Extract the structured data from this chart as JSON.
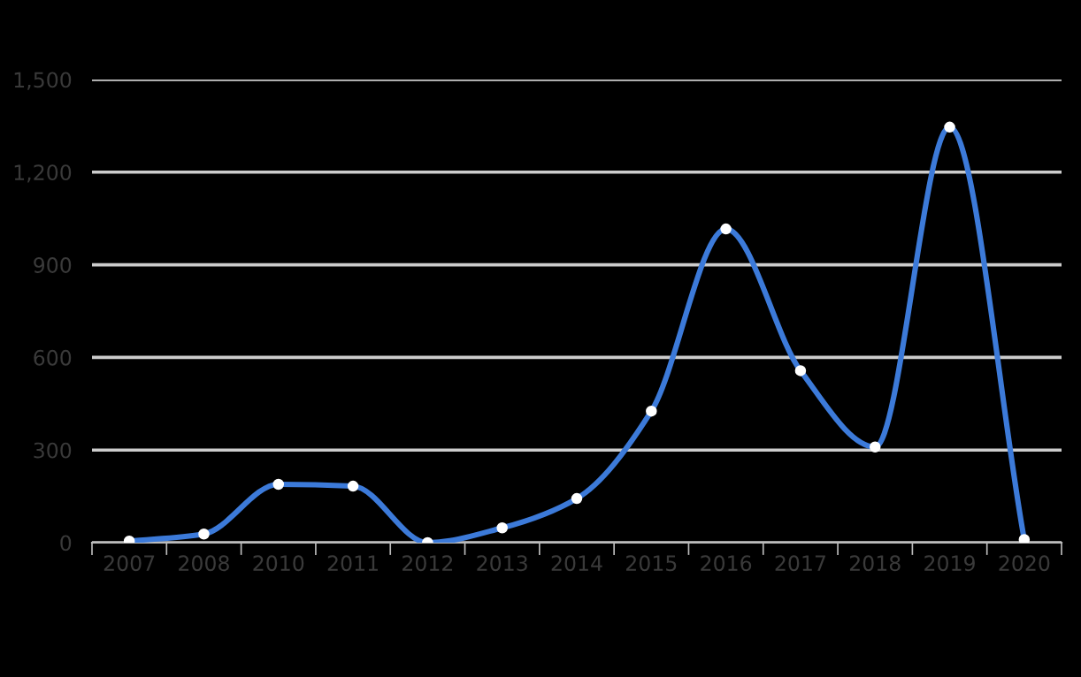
{
  "chart_data": {
    "type": "line",
    "categories": [
      "2007",
      "2008",
      "2010",
      "2011",
      "2012",
      "2013",
      "2014",
      "2015",
      "2016",
      "2017",
      "2018",
      "2019",
      "2020"
    ],
    "series": [
      {
        "color": "#3c7ad9",
        "values": [
          5,
          28,
          189,
          183,
          0,
          48,
          143,
          426,
          1016,
          557,
          310,
          1346,
          10
        ]
      }
    ],
    "ylim": [
      0,
      1500
    ],
    "yticks": [
      0,
      {
        "value": 300,
        "label": "300"
      },
      {
        "value": 600,
        "label": "600"
      },
      {
        "value": 900,
        "label": "900"
      },
      {
        "value": 1200,
        "label": "1,200"
      },
      {
        "value": 1500,
        "label": "1,500"
      }
    ],
    "grid": "y",
    "marker": "circle",
    "legend": false
  }
}
